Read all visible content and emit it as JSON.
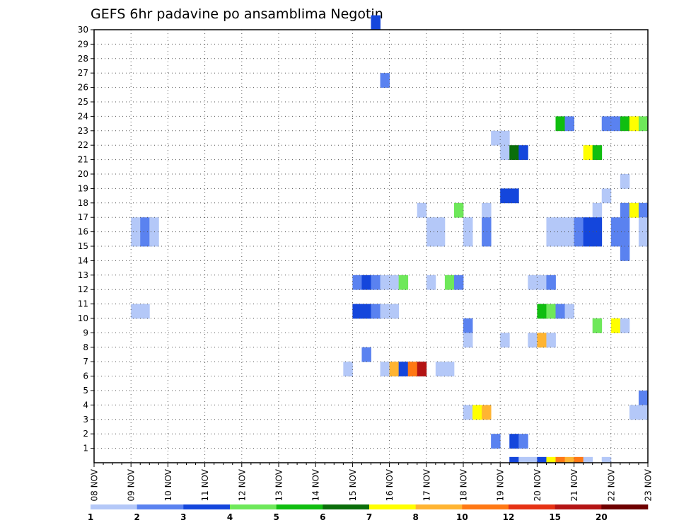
{
  "chart_data": {
    "type": "heatmap",
    "title": "GEFS 6hr padavine po ansamblima Negotin",
    "x_labels": [
      "08 NOV",
      "09 NOV",
      "10 NOV",
      "11 NOV",
      "12 NOV",
      "13 NOV",
      "14 NOV",
      "15 NOV",
      "16 NOV",
      "17 NOV",
      "18 NOV",
      "19 NOV",
      "20 NOV",
      "21 NOV",
      "22 NOV",
      "23 NOV"
    ],
    "y_labels": [
      "1",
      "2",
      "3",
      "4",
      "5",
      "6",
      "7",
      "8",
      "9",
      "10",
      "11",
      "12",
      "13",
      "14",
      "15",
      "16",
      "17",
      "18",
      "19",
      "20",
      "21",
      "22",
      "23",
      "24",
      "25",
      "26",
      "27",
      "28",
      "29",
      "30"
    ],
    "xlim": [
      "08 NOV 00",
      "23 NOV 00"
    ],
    "ylim": [
      0,
      30
    ],
    "steps_per_day": 4,
    "grid": true,
    "legend": {
      "placement": "bottom",
      "labels": [
        "1",
        "2",
        "3",
        "4",
        "5",
        "6",
        "7",
        "8",
        "10",
        "12",
        "15",
        "20"
      ],
      "colors": [
        "#b4c8f8",
        "#5a82f0",
        "#1446dc",
        "#6ee85a",
        "#10be10",
        "#0a6e0a",
        "#ffff00",
        "#ffb432",
        "#ff7814",
        "#e63214",
        "#b41414",
        "#6e0000"
      ]
    },
    "cells": [
      {
        "m": 30,
        "t": "15 NOV 12",
        "c": "#1446dc"
      },
      {
        "m": 26,
        "t": "15 NOV 18",
        "c": "#5a82f0"
      },
      {
        "m": 23,
        "t": "20 NOV 12",
        "c": "#10be10"
      },
      {
        "m": 23,
        "t": "20 NOV 18",
        "c": "#5a82f0"
      },
      {
        "m": 23,
        "t": "21 NOV 18",
        "c": "#5a82f0"
      },
      {
        "m": 23,
        "t": "22 NOV 00",
        "c": "#5a82f0"
      },
      {
        "m": 23,
        "t": "22 NOV 06",
        "c": "#10be10"
      },
      {
        "m": 23,
        "t": "22 NOV 12",
        "c": "#ffff00"
      },
      {
        "m": 23,
        "t": "22 NOV 18",
        "c": "#6ee85a"
      },
      {
        "m": 22,
        "t": "18 NOV 18",
        "c": "#b4c8f8"
      },
      {
        "m": 22,
        "t": "19 NOV 00",
        "c": "#b4c8f8"
      },
      {
        "m": 21,
        "t": "19 NOV 00",
        "c": "#b4c8f8"
      },
      {
        "m": 21,
        "t": "19 NOV 06",
        "c": "#0a6e0a"
      },
      {
        "m": 21,
        "t": "19 NOV 12",
        "c": "#1446dc"
      },
      {
        "m": 21,
        "t": "21 NOV 06",
        "c": "#ffff00"
      },
      {
        "m": 21,
        "t": "21 NOV 12",
        "c": "#10be10"
      },
      {
        "m": 19,
        "t": "22 NOV 06",
        "c": "#b4c8f8"
      },
      {
        "m": 18,
        "t": "19 NOV 00",
        "c": "#1446dc"
      },
      {
        "m": 18,
        "t": "19 NOV 06",
        "c": "#1446dc"
      },
      {
        "m": 18,
        "t": "21 NOV 18",
        "c": "#b4c8f8"
      },
      {
        "m": 17,
        "t": "16 NOV 18",
        "c": "#b4c8f8"
      },
      {
        "m": 17,
        "t": "17 NOV 18",
        "c": "#6ee85a"
      },
      {
        "m": 17,
        "t": "18 NOV 12",
        "c": "#b4c8f8"
      },
      {
        "m": 17,
        "t": "21 NOV 12",
        "c": "#b4c8f8"
      },
      {
        "m": 17,
        "t": "22 NOV 06",
        "c": "#5a82f0"
      },
      {
        "m": 17,
        "t": "22 NOV 12",
        "c": "#ffff00"
      },
      {
        "m": 17,
        "t": "22 NOV 18",
        "c": "#5a82f0"
      },
      {
        "m": 16,
        "t": "09 NOV 00",
        "c": "#b4c8f8"
      },
      {
        "m": 16,
        "t": "09 NOV 06",
        "c": "#5a82f0"
      },
      {
        "m": 16,
        "t": "09 NOV 12",
        "c": "#b4c8f8"
      },
      {
        "m": 16,
        "t": "17 NOV 00",
        "c": "#b4c8f8"
      },
      {
        "m": 16,
        "t": "17 NOV 06",
        "c": "#b4c8f8"
      },
      {
        "m": 16,
        "t": "18 NOV 00",
        "c": "#b4c8f8"
      },
      {
        "m": 16,
        "t": "18 NOV 12",
        "c": "#5a82f0"
      },
      {
        "m": 16,
        "t": "20 NOV 06",
        "c": "#b4c8f8"
      },
      {
        "m": 16,
        "t": "20 NOV 12",
        "c": "#b4c8f8"
      },
      {
        "m": 16,
        "t": "20 NOV 18",
        "c": "#b4c8f8"
      },
      {
        "m": 16,
        "t": "21 NOV 00",
        "c": "#5a82f0"
      },
      {
        "m": 16,
        "t": "21 NOV 06",
        "c": "#1446dc"
      },
      {
        "m": 16,
        "t": "21 NOV 12",
        "c": "#1446dc"
      },
      {
        "m": 16,
        "t": "22 NOV 00",
        "c": "#5a82f0"
      },
      {
        "m": 16,
        "t": "22 NOV 06",
        "c": "#5a82f0"
      },
      {
        "m": 16,
        "t": "22 NOV 18",
        "c": "#b4c8f8"
      },
      {
        "m": 15,
        "t": "09 NOV 00",
        "c": "#b4c8f8"
      },
      {
        "m": 15,
        "t": "09 NOV 06",
        "c": "#5a82f0"
      },
      {
        "m": 15,
        "t": "09 NOV 12",
        "c": "#b4c8f8"
      },
      {
        "m": 15,
        "t": "17 NOV 00",
        "c": "#b4c8f8"
      },
      {
        "m": 15,
        "t": "17 NOV 06",
        "c": "#b4c8f8"
      },
      {
        "m": 15,
        "t": "18 NOV 00",
        "c": "#b4c8f8"
      },
      {
        "m": 15,
        "t": "18 NOV 12",
        "c": "#5a82f0"
      },
      {
        "m": 15,
        "t": "20 NOV 06",
        "c": "#b4c8f8"
      },
      {
        "m": 15,
        "t": "20 NOV 12",
        "c": "#b4c8f8"
      },
      {
        "m": 15,
        "t": "20 NOV 18",
        "c": "#b4c8f8"
      },
      {
        "m": 15,
        "t": "21 NOV 00",
        "c": "#5a82f0"
      },
      {
        "m": 15,
        "t": "21 NOV 06",
        "c": "#1446dc"
      },
      {
        "m": 15,
        "t": "21 NOV 12",
        "c": "#1446dc"
      },
      {
        "m": 15,
        "t": "22 NOV 00",
        "c": "#5a82f0"
      },
      {
        "m": 15,
        "t": "22 NOV 06",
        "c": "#5a82f0"
      },
      {
        "m": 15,
        "t": "22 NOV 18",
        "c": "#b4c8f8"
      },
      {
        "m": 14,
        "t": "22 NOV 06",
        "c": "#5a82f0"
      },
      {
        "m": 12,
        "t": "15 NOV 00",
        "c": "#5a82f0"
      },
      {
        "m": 12,
        "t": "15 NOV 06",
        "c": "#1446dc"
      },
      {
        "m": 12,
        "t": "15 NOV 12",
        "c": "#5a82f0"
      },
      {
        "m": 12,
        "t": "15 NOV 18",
        "c": "#b4c8f8"
      },
      {
        "m": 12,
        "t": "16 NOV 00",
        "c": "#b4c8f8"
      },
      {
        "m": 12,
        "t": "16 NOV 06",
        "c": "#6ee85a"
      },
      {
        "m": 12,
        "t": "17 NOV 00",
        "c": "#b4c8f8"
      },
      {
        "m": 12,
        "t": "17 NOV 12",
        "c": "#6ee85a"
      },
      {
        "m": 12,
        "t": "17 NOV 18",
        "c": "#5a82f0"
      },
      {
        "m": 12,
        "t": "19 NOV 18",
        "c": "#b4c8f8"
      },
      {
        "m": 12,
        "t": "20 NOV 00",
        "c": "#b4c8f8"
      },
      {
        "m": 12,
        "t": "20 NOV 06",
        "c": "#5a82f0"
      },
      {
        "m": 10,
        "t": "09 NOV 00",
        "c": "#b4c8f8"
      },
      {
        "m": 10,
        "t": "09 NOV 06",
        "c": "#b4c8f8"
      },
      {
        "m": 10,
        "t": "15 NOV 00",
        "c": "#1446dc"
      },
      {
        "m": 10,
        "t": "15 NOV 06",
        "c": "#1446dc"
      },
      {
        "m": 10,
        "t": "15 NOV 12",
        "c": "#5a82f0"
      },
      {
        "m": 10,
        "t": "15 NOV 18",
        "c": "#b4c8f8"
      },
      {
        "m": 10,
        "t": "16 NOV 00",
        "c": "#b4c8f8"
      },
      {
        "m": 10,
        "t": "20 NOV 00",
        "c": "#10be10"
      },
      {
        "m": 10,
        "t": "20 NOV 06",
        "c": "#6ee85a"
      },
      {
        "m": 10,
        "t": "20 NOV 12",
        "c": "#5a82f0"
      },
      {
        "m": 10,
        "t": "20 NOV 18",
        "c": "#b4c8f8"
      },
      {
        "m": 9,
        "t": "18 NOV 00",
        "c": "#5a82f0"
      },
      {
        "m": 9,
        "t": "21 NOV 12",
        "c": "#6ee85a"
      },
      {
        "m": 9,
        "t": "22 NOV 00",
        "c": "#ffff00"
      },
      {
        "m": 9,
        "t": "22 NOV 06",
        "c": "#b4c8f8"
      },
      {
        "m": 8,
        "t": "18 NOV 00",
        "c": "#b4c8f8"
      },
      {
        "m": 8,
        "t": "19 NOV 00",
        "c": "#b4c8f8"
      },
      {
        "m": 8,
        "t": "19 NOV 18",
        "c": "#b4c8f8"
      },
      {
        "m": 8,
        "t": "20 NOV 00",
        "c": "#ffb432"
      },
      {
        "m": 8,
        "t": "20 NOV 06",
        "c": "#b4c8f8"
      },
      {
        "m": 7,
        "t": "15 NOV 06",
        "c": "#5a82f0"
      },
      {
        "m": 6,
        "t": "14 NOV 18",
        "c": "#b4c8f8"
      },
      {
        "m": 6,
        "t": "15 NOV 18",
        "c": "#b4c8f8"
      },
      {
        "m": 6,
        "t": "16 NOV 00",
        "c": "#ffb432"
      },
      {
        "m": 6,
        "t": "16 NOV 06",
        "c": "#1446dc"
      },
      {
        "m": 6,
        "t": "16 NOV 12",
        "c": "#ff7814"
      },
      {
        "m": 6,
        "t": "16 NOV 18",
        "c": "#b41414"
      },
      {
        "m": 6,
        "t": "17 NOV 06",
        "c": "#b4c8f8"
      },
      {
        "m": 6,
        "t": "17 NOV 12",
        "c": "#b4c8f8"
      },
      {
        "m": 4,
        "t": "22 NOV 18",
        "c": "#5a82f0"
      },
      {
        "m": 3,
        "t": "18 NOV 00",
        "c": "#b4c8f8"
      },
      {
        "m": 3,
        "t": "18 NOV 06",
        "c": "#ffff00"
      },
      {
        "m": 3,
        "t": "18 NOV 12",
        "c": "#ffb432"
      },
      {
        "m": 3,
        "t": "22 NOV 12",
        "c": "#b4c8f8"
      },
      {
        "m": 3,
        "t": "22 NOV 18",
        "c": "#b4c8f8"
      },
      {
        "m": 1,
        "t": "18 NOV 18",
        "c": "#5a82f0"
      },
      {
        "m": 1,
        "t": "19 NOV 06",
        "c": "#1446dc"
      },
      {
        "m": 1,
        "t": "19 NOV 12",
        "c": "#5a82f0"
      },
      {
        "m": 0,
        "t": "19 NOV 06",
        "c": "#1446dc"
      },
      {
        "m": 0,
        "t": "19 NOV 12",
        "c": "#b4c8f8"
      },
      {
        "m": 0,
        "t": "19 NOV 18",
        "c": "#b4c8f8"
      },
      {
        "m": 0,
        "t": "20 NOV 00",
        "c": "#1446dc"
      },
      {
        "m": 0,
        "t": "20 NOV 06",
        "c": "#ffff00"
      },
      {
        "m": 0,
        "t": "20 NOV 12",
        "c": "#ff7814"
      },
      {
        "m": 0,
        "t": "20 NOV 18",
        "c": "#ffb432"
      },
      {
        "m": 0,
        "t": "21 NOV 00",
        "c": "#ff7814"
      },
      {
        "m": 0,
        "t": "21 NOV 06",
        "c": "#b4c8f8"
      },
      {
        "m": 0,
        "t": "21 NOV 18",
        "c": "#b4c8f8"
      }
    ]
  }
}
